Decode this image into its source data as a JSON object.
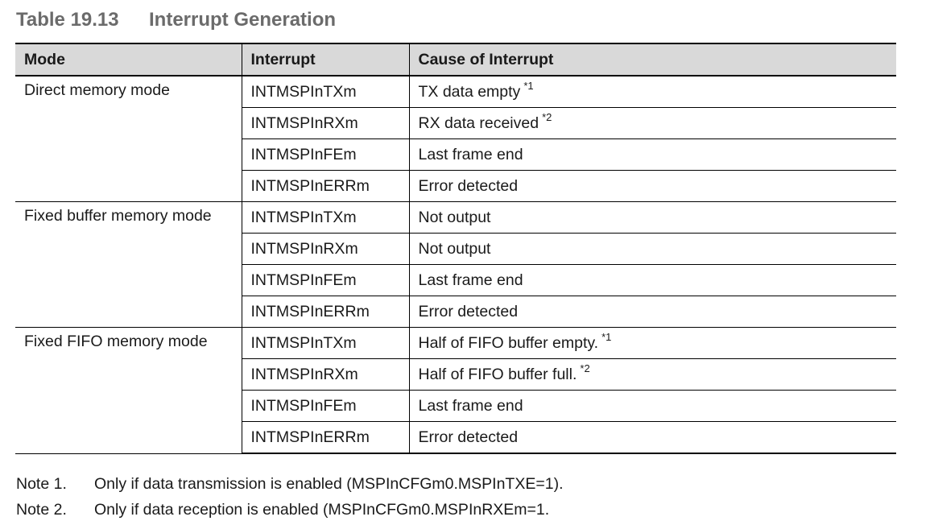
{
  "caption": {
    "number": "Table 19.13",
    "title": "Interrupt Generation"
  },
  "table": {
    "headers": [
      "Mode",
      "Interrupt",
      "Cause of Interrupt"
    ],
    "groups": [
      {
        "mode": "Direct memory mode",
        "rows": [
          {
            "interrupt": "INTMSPInTXm",
            "cause": "TX data empty",
            "note_ref": "*1"
          },
          {
            "interrupt": "INTMSPInRXm",
            "cause": "RX data received",
            "note_ref": "*2"
          },
          {
            "interrupt": "INTMSPInFEm",
            "cause": "Last frame end",
            "note_ref": ""
          },
          {
            "interrupt": "INTMSPInERRm",
            "cause": "Error detected",
            "note_ref": ""
          }
        ]
      },
      {
        "mode": "Fixed buffer memory mode",
        "rows": [
          {
            "interrupt": "INTMSPInTXm",
            "cause": "Not output",
            "note_ref": ""
          },
          {
            "interrupt": "INTMSPInRXm",
            "cause": "Not output",
            "note_ref": ""
          },
          {
            "interrupt": "INTMSPInFEm",
            "cause": "Last frame end",
            "note_ref": ""
          },
          {
            "interrupt": "INTMSPInERRm",
            "cause": "Error detected",
            "note_ref": ""
          }
        ]
      },
      {
        "mode": "Fixed FIFO memory mode",
        "rows": [
          {
            "interrupt": "INTMSPInTXm",
            "cause": "Half of FIFO buffer empty.",
            "note_ref": "*1"
          },
          {
            "interrupt": "INTMSPInRXm",
            "cause": "Half of FIFO buffer full.",
            "note_ref": "*2"
          },
          {
            "interrupt": "INTMSPInFEm",
            "cause": "Last frame end",
            "note_ref": ""
          },
          {
            "interrupt": "INTMSPInERRm",
            "cause": "Error detected",
            "note_ref": ""
          }
        ]
      }
    ]
  },
  "notes": [
    {
      "label": "Note 1.",
      "text": "Only if data transmission is enabled (MSPInCFGm0.MSPInTXE=1)."
    },
    {
      "label": "Note 2.",
      "text": "Only if data reception is enabled (MSPInCFGm0.MSPInRXEm=1."
    }
  ]
}
